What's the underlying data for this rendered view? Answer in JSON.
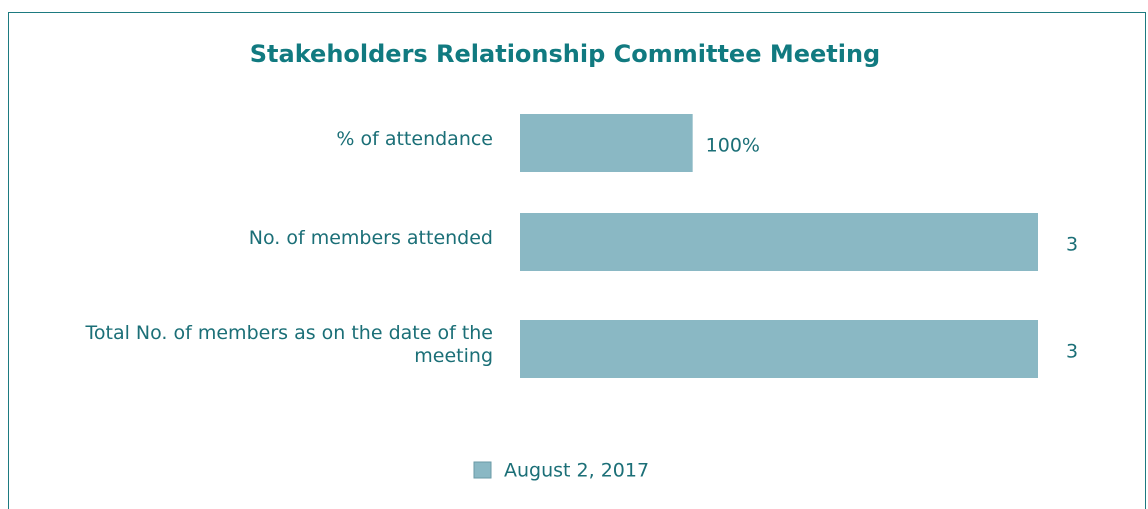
{
  "chart_data": {
    "type": "bar",
    "orientation": "horizontal",
    "title": "Stakeholders Relationship Committee Meeting",
    "categories": [
      "% of attendance",
      "No. of members attended",
      "Total No. of members as on the date of the meeting"
    ],
    "series": [
      {
        "name": "August 2, 2017",
        "color": "#8ab8c4",
        "values": [
          1,
          3,
          3
        ],
        "value_labels": [
          "100%",
          "3",
          "3"
        ]
      }
    ],
    "xlim": [
      0,
      3
    ],
    "legend": "bottom"
  }
}
